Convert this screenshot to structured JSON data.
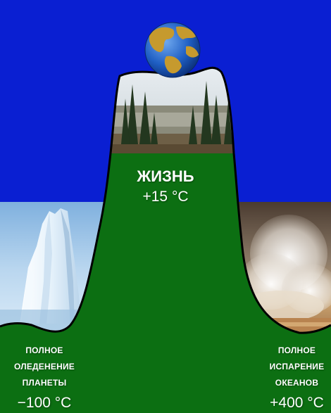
{
  "life": {
    "title": "ЖИЗНЬ",
    "temp": "+15 °C"
  },
  "left": {
    "caption": [
      "ПОЛНОЕ",
      "ОЛЕДЕНЕНИЕ",
      "ПЛАНЕТЫ"
    ],
    "temp": "−100 °C"
  },
  "right": {
    "caption": [
      "ПОЛНОЕ",
      "ИСПАРЕНИЕ",
      "ОКЕАНОВ"
    ],
    "temp": "+400 °C"
  },
  "colors": {
    "sky": "#0a1fd2",
    "hill": "#0c6f12",
    "outline": "#000000",
    "text": "#ffffff",
    "globe_ocean": "#1f5fc4",
    "globe_land": "#c69a2e"
  },
  "images": {
    "summit": "forest-landscape",
    "left": "iceberg",
    "right": "geyser-steam",
    "top": "globe"
  }
}
